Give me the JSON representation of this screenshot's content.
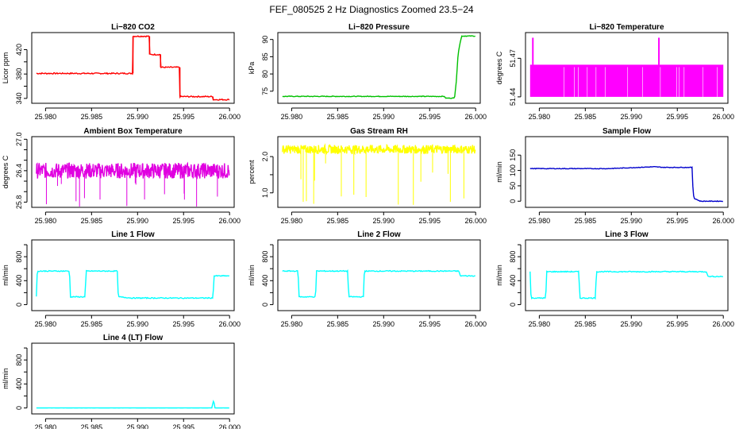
{
  "figure_title": "FEF_080525  2 Hz Diagnostics Zoomed 23.5−24",
  "chart_data": [
    {
      "type": "line",
      "title": "Li−820 CO2",
      "ylabel": "Licor ppm",
      "color": "#ff0000",
      "xlim": [
        25.9785,
        26.0005
      ],
      "ylim": [
        332,
        448
      ],
      "x_ticks": [
        "25.980",
        "25.985",
        "25.990",
        "25.995",
        "26.000"
      ],
      "y_ticks": [
        340,
        360,
        380,
        400,
        420
      ],
      "y_tick_labels": [
        "340",
        "380",
        "420"
      ],
      "noise": 1,
      "series": [
        {
          "x": [
            25.979,
            25.9895,
            25.9895,
            25.9913,
            25.9913,
            25.9925,
            25.9925,
            25.9946,
            25.9946,
            25.9982,
            25.9982,
            26.0
          ],
          "y": [
            381,
            381,
            442,
            442,
            412,
            412,
            391,
            391,
            343,
            343,
            338,
            338
          ]
        }
      ]
    },
    {
      "type": "line",
      "title": "Li−820 Pressure",
      "ylabel": "kPa",
      "color": "#00c000",
      "xlim": [
        25.9785,
        26.0005
      ],
      "ylim": [
        71.5,
        92
      ],
      "x_ticks": [
        "25.980",
        "25.985",
        "25.990",
        "25.995",
        "26.000"
      ],
      "y_ticks": [
        75,
        80,
        85,
        90
      ],
      "y_tick_labels": [
        "75",
        "80",
        "85",
        "90"
      ],
      "noise": 0.1,
      "series": [
        {
          "x": [
            25.979,
            25.9966,
            25.9967,
            25.9977,
            25.9979,
            25.9981,
            25.9983,
            25.9985,
            26.0
          ],
          "y": [
            73.5,
            73.5,
            73.0,
            73.0,
            78,
            86,
            89,
            91,
            91
          ]
        }
      ]
    },
    {
      "type": "line",
      "title": "Li−820 Temperature",
      "ylabel": "degrees C",
      "color": "#ff00ff",
      "xlim": [
        25.9785,
        26.0005
      ],
      "ylim": [
        51.435,
        51.49
      ],
      "x_ticks": [
        "25.980",
        "25.985",
        "25.990",
        "25.995",
        "26.000"
      ],
      "y_ticks": [
        51.44,
        51.47
      ],
      "y_tick_labels": [
        "51.44",
        "51.47"
      ],
      "band": [
        51.44,
        51.465
      ],
      "spikes": [
        25.9793,
        25.993
      ],
      "spike_top": 51.486,
      "series": [
        {
          "x": [
            25.979,
            26.0
          ],
          "y": [
            51.465,
            51.465
          ]
        }
      ]
    },
    {
      "type": "line",
      "title": "Ambient Box Temperature",
      "ylabel": "degrees C",
      "color": "#e000e0",
      "xlim": [
        25.9785,
        26.0005
      ],
      "ylim": [
        25.7,
        27.05
      ],
      "x_ticks": [
        "25.980",
        "25.985",
        "25.990",
        "25.995",
        "26.000"
      ],
      "y_ticks": [
        25.8,
        26.0,
        26.2,
        26.4,
        26.6,
        26.8,
        27.0
      ],
      "y_tick_labels": [
        "25.8",
        "26.4",
        "27.0"
      ],
      "noise": 0.15,
      "series": [
        {
          "x": [
            25.979,
            26.0
          ],
          "y": [
            26.4,
            26.4
          ]
        }
      ]
    },
    {
      "type": "line",
      "title": "Gas Stream RH",
      "ylabel": "percent",
      "color": "#ffff00",
      "xlim": [
        25.9785,
        26.0005
      ],
      "ylim": [
        0.6,
        2.55
      ],
      "x_ticks": [
        "25.980",
        "25.985",
        "25.990",
        "25.995",
        "26.000"
      ],
      "y_ticks": [
        1.0,
        1.5,
        2.0
      ],
      "y_tick_labels": [
        "1.0",
        "2.0"
      ],
      "noise": 0.12,
      "series": [
        {
          "x": [
            25.979,
            26.0
          ],
          "y": [
            2.2,
            2.2
          ]
        }
      ]
    },
    {
      "type": "line",
      "title": "Sample Flow",
      "ylabel": "ml/min",
      "color": "#0000cc",
      "xlim": [
        25.9785,
        26.0005
      ],
      "ylim": [
        -20,
        210
      ],
      "x_ticks": [
        "25.980",
        "25.985",
        "25.990",
        "25.995",
        "26.000"
      ],
      "y_ticks": [
        0,
        50,
        100,
        150
      ],
      "y_tick_labels": [
        "0",
        "50",
        "100",
        "150"
      ],
      "noise": 1,
      "series": [
        {
          "x": [
            25.979,
            25.9875,
            25.9925,
            25.9935,
            25.9966,
            25.9967,
            25.9968,
            25.9975,
            26.0
          ],
          "y": [
            106,
            106,
            112,
            110,
            110,
            40,
            10,
            0,
            0
          ]
        }
      ]
    },
    {
      "type": "line",
      "title": "Line 1 Flow",
      "ylabel": "ml/min",
      "color": "#00ffff",
      "xlim": [
        25.9785,
        26.0005
      ],
      "ylim": [
        -100,
        1080
      ],
      "x_ticks": [
        "25.980",
        "25.985",
        "25.990",
        "25.995",
        "26.000"
      ],
      "y_ticks": [
        0,
        200,
        400,
        600,
        800,
        1000
      ],
      "y_tick_labels": [
        "0",
        "400",
        "800"
      ],
      "noise": 8,
      "series": [
        {
          "x": [
            25.979,
            25.9791,
            25.9826,
            25.9827,
            25.9843,
            25.9844,
            25.9878,
            25.9879,
            25.9894,
            25.9982,
            25.9983,
            26.0
          ],
          "y": [
            130,
            560,
            560,
            130,
            130,
            560,
            560,
            130,
            110,
            110,
            480,
            480
          ]
        }
      ]
    },
    {
      "type": "line",
      "title": "Line 2 Flow",
      "ylabel": "ml/min",
      "color": "#00ffff",
      "xlim": [
        25.9785,
        26.0005
      ],
      "ylim": [
        -100,
        1080
      ],
      "x_ticks": [
        "25.980",
        "25.985",
        "25.990",
        "25.995",
        "26.000"
      ],
      "y_ticks": [
        0,
        200,
        400,
        600,
        800,
        1000
      ],
      "y_tick_labels": [
        "0",
        "400",
        "800"
      ],
      "noise": 8,
      "series": [
        {
          "x": [
            25.979,
            25.9807,
            25.9808,
            25.9826,
            25.9827,
            25.9861,
            25.9862,
            25.9878,
            25.9879,
            25.9982,
            25.9983,
            26.0
          ],
          "y": [
            560,
            560,
            130,
            130,
            560,
            560,
            130,
            130,
            560,
            560,
            480,
            480
          ]
        }
      ]
    },
    {
      "type": "line",
      "title": "Line 3 Flow",
      "ylabel": "ml/min",
      "color": "#00ffff",
      "xlim": [
        25.9785,
        26.0005
      ],
      "ylim": [
        -100,
        1080
      ],
      "x_ticks": [
        "25.980",
        "25.985",
        "25.990",
        "25.995",
        "26.000"
      ],
      "y_ticks": [
        0,
        200,
        400,
        600,
        800,
        1000
      ],
      "y_tick_labels": [
        "0",
        "400",
        "800"
      ],
      "noise": 8,
      "series": [
        {
          "x": [
            25.979,
            25.9791,
            25.9807,
            25.9808,
            25.9843,
            25.9844,
            25.9861,
            25.9862,
            25.9982,
            25.9983,
            26.0
          ],
          "y": [
            550,
            110,
            110,
            550,
            550,
            110,
            110,
            550,
            550,
            470,
            470
          ]
        }
      ]
    },
    {
      "type": "line",
      "title": "Line 4 (LT) Flow",
      "ylabel": "ml/min",
      "color": "#00ffff",
      "xlim": [
        25.9785,
        26.0005
      ],
      "ylim": [
        -100,
        1080
      ],
      "x_ticks": [
        "25.980",
        "25.985",
        "25.990",
        "25.995",
        "26.000"
      ],
      "y_ticks": [
        0,
        200,
        400,
        600,
        800,
        1000
      ],
      "y_tick_labels": [
        "0",
        "400",
        "800"
      ],
      "noise": 1,
      "series": [
        {
          "x": [
            25.979,
            25.9981,
            25.9982,
            25.9983,
            25.9984,
            26.0
          ],
          "y": [
            0,
            0,
            110,
            110,
            0,
            0
          ]
        }
      ]
    }
  ]
}
